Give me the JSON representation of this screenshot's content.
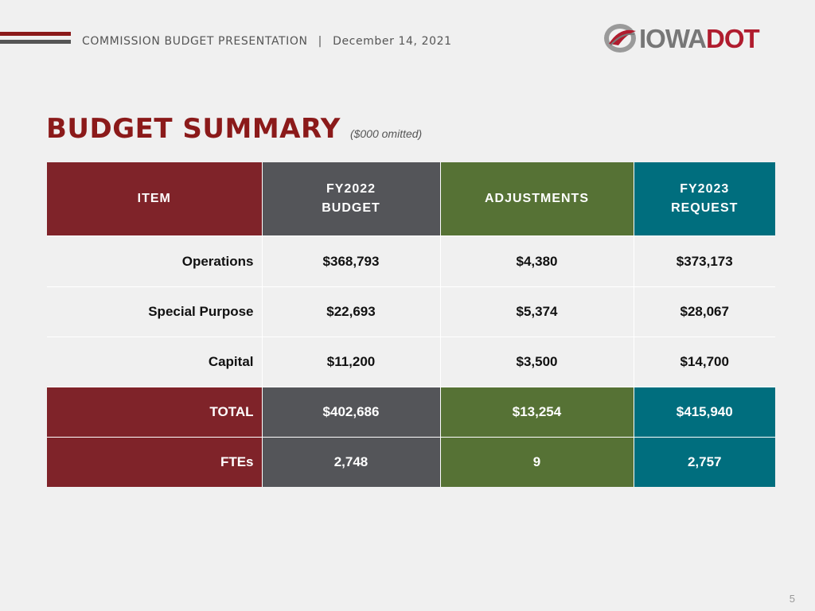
{
  "header": {
    "presentation_title": "COMMISSION BUDGET PRESENTATION",
    "separator": "|",
    "date": "December 14, 2021"
  },
  "logo": {
    "part1": "IOWA",
    "part2": "DOT",
    "icon": "iowa-dot-swoosh-icon"
  },
  "colors": {
    "brand_red": "#8b1a1a",
    "item_col": "#7f2329",
    "fy2022_col": "#545559",
    "adjustments_col": "#567235",
    "fy2023_col": "#006e7e"
  },
  "title": {
    "main": "BUDGET SUMMARY",
    "note": "($000 omitted)"
  },
  "table": {
    "headers": {
      "item": "ITEM",
      "fy2022_line1": "FY2022",
      "fy2022_line2": "BUDGET",
      "adjustments": "ADJUSTMENTS",
      "fy2023_line1": "FY2023",
      "fy2023_line2": "REQUEST"
    },
    "rows": [
      {
        "item": "Operations",
        "fy2022": "$368,793",
        "adjustments": "$4,380",
        "fy2023": "$373,173"
      },
      {
        "item": "Special Purpose",
        "fy2022": "$22,693",
        "adjustments": "$5,374",
        "fy2023": "$28,067"
      },
      {
        "item": "Capital",
        "fy2022": "$11,200",
        "adjustments": "$3,500",
        "fy2023": "$14,700"
      },
      {
        "item": "TOTAL",
        "fy2022": "$402,686",
        "adjustments": "$13,254",
        "fy2023": "$415,940"
      },
      {
        "item": "FTEs",
        "fy2022": "2,748",
        "adjustments": "9",
        "fy2023": "2,757"
      }
    ]
  },
  "page_number": "5"
}
